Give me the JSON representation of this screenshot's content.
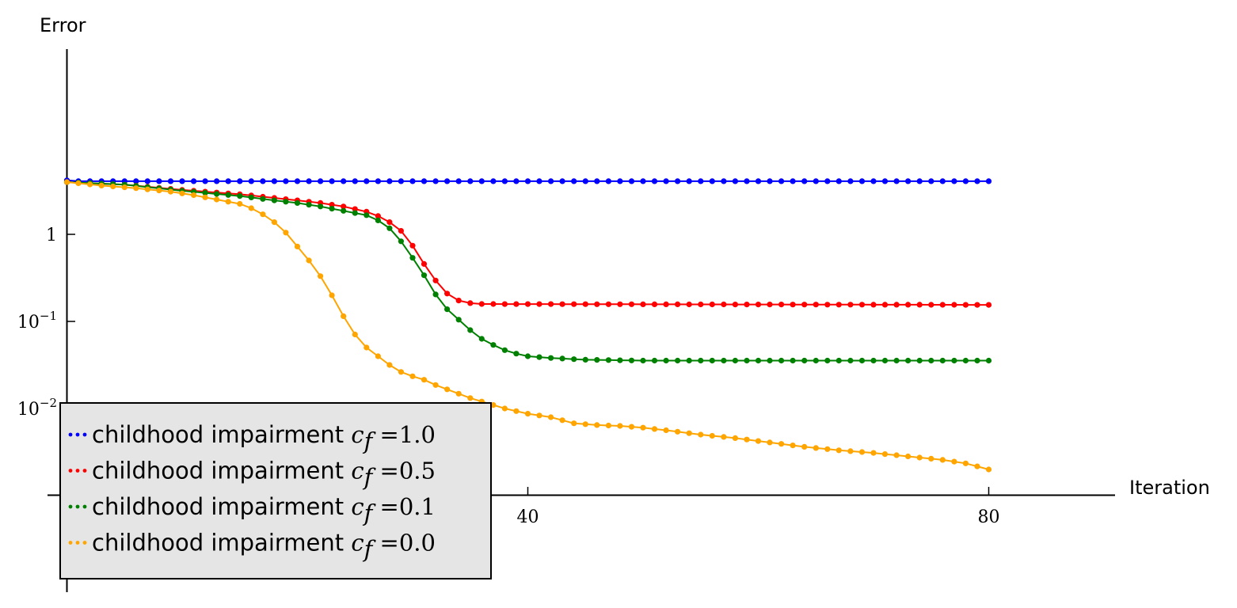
{
  "chart_data": {
    "type": "line",
    "xlabel": "Iteration",
    "ylabel": "Error",
    "xlim": [
      0,
      91
    ],
    "ylim_log10": [
      -3.0,
      2.1
    ],
    "xscale": "linear",
    "yscale": "log",
    "grid": false,
    "legend_position": "bottom-left",
    "x_ticks": [
      {
        "value": 40,
        "label": "40"
      },
      {
        "value": 80,
        "label": "80"
      }
    ],
    "y_ticks": [
      {
        "value_log10": 0,
        "label": "1",
        "exp": ""
      },
      {
        "value_log10": -1,
        "label": "10",
        "exp": "−1"
      },
      {
        "value_log10": -2,
        "label": "10",
        "exp": "−2"
      }
    ],
    "series": [
      {
        "legend_text": "childhood impairment ",
        "legend_math": "c",
        "legend_sub": "f",
        "legend_eq": " =1.0",
        "color": "#0000ff",
        "points_x": [
          0,
          80
        ],
        "knots": [
          [
            0,
            0.62
          ],
          [
            1,
            0.61
          ],
          [
            80,
            0.61
          ]
        ]
      },
      {
        "legend_text": "childhood impairment ",
        "legend_math": "c",
        "legend_sub": "f",
        "legend_eq": " =0.5",
        "color": "#ff0000",
        "knots": [
          [
            0,
            0.6
          ],
          [
            5,
            0.57
          ],
          [
            10,
            0.51
          ],
          [
            15,
            0.46
          ],
          [
            20,
            0.39
          ],
          [
            22,
            0.36
          ],
          [
            24,
            0.32
          ],
          [
            26,
            0.26
          ],
          [
            27,
            0.21
          ],
          [
            28,
            0.14
          ],
          [
            29,
            0.04
          ],
          [
            30,
            -0.13
          ],
          [
            31,
            -0.34
          ],
          [
            32,
            -0.53
          ],
          [
            33,
            -0.68
          ],
          [
            34,
            -0.76
          ],
          [
            35,
            -0.79
          ],
          [
            36,
            -0.8
          ],
          [
            80,
            -0.81
          ]
        ]
      },
      {
        "legend_text": "childhood impairment ",
        "legend_math": "c",
        "legend_sub": "f",
        "legend_eq": " =0.1",
        "color": "#008000",
        "knots": [
          [
            0,
            0.6
          ],
          [
            5,
            0.57
          ],
          [
            10,
            0.5
          ],
          [
            15,
            0.44
          ],
          [
            18,
            0.39
          ],
          [
            20,
            0.36
          ],
          [
            22,
            0.32
          ],
          [
            24,
            0.27
          ],
          [
            26,
            0.22
          ],
          [
            27,
            0.16
          ],
          [
            28,
            0.07
          ],
          [
            29,
            -0.08
          ],
          [
            30,
            -0.27
          ],
          [
            31,
            -0.47
          ],
          [
            32,
            -0.69
          ],
          [
            33,
            -0.86
          ],
          [
            34,
            -0.98
          ],
          [
            35,
            -1.1
          ],
          [
            36,
            -1.2
          ],
          [
            37,
            -1.27
          ],
          [
            38,
            -1.33
          ],
          [
            39,
            -1.37
          ],
          [
            40,
            -1.4
          ],
          [
            42,
            -1.42
          ],
          [
            45,
            -1.44
          ],
          [
            50,
            -1.45
          ],
          [
            80,
            -1.45
          ]
        ]
      },
      {
        "legend_text": "childhood impairment ",
        "legend_math": "c",
        "legend_sub": "f",
        "legend_eq": " =0.0",
        "color": "#ffa500",
        "knots": [
          [
            0,
            0.6
          ],
          [
            3,
            0.56
          ],
          [
            6,
            0.53
          ],
          [
            9,
            0.49
          ],
          [
            11,
            0.45
          ],
          [
            13,
            0.4
          ],
          [
            15,
            0.35
          ],
          [
            16,
            0.3
          ],
          [
            17,
            0.23
          ],
          [
            18,
            0.14
          ],
          [
            19,
            0.02
          ],
          [
            20,
            -0.14
          ],
          [
            21,
            -0.3
          ],
          [
            22,
            -0.48
          ],
          [
            23,
            -0.7
          ],
          [
            24,
            -0.94
          ],
          [
            25,
            -1.15
          ],
          [
            26,
            -1.3
          ],
          [
            27,
            -1.4
          ],
          [
            28,
            -1.5
          ],
          [
            29,
            -1.58
          ],
          [
            30,
            -1.63
          ],
          [
            31,
            -1.67
          ],
          [
            32,
            -1.73
          ],
          [
            33,
            -1.78
          ],
          [
            34,
            -1.83
          ],
          [
            35,
            -1.88
          ],
          [
            36,
            -1.92
          ],
          [
            38,
            -2.0
          ],
          [
            40,
            -2.06
          ],
          [
            42,
            -2.1
          ],
          [
            44,
            -2.17
          ],
          [
            46,
            -2.19
          ],
          [
            48,
            -2.2
          ],
          [
            50,
            -2.22
          ],
          [
            52,
            -2.25
          ],
          [
            55,
            -2.3
          ],
          [
            58,
            -2.34
          ],
          [
            61,
            -2.39
          ],
          [
            64,
            -2.44
          ],
          [
            67,
            -2.48
          ],
          [
            70,
            -2.51
          ],
          [
            73,
            -2.55
          ],
          [
            76,
            -2.59
          ],
          [
            78,
            -2.63
          ],
          [
            80,
            -2.7
          ]
        ]
      }
    ]
  }
}
